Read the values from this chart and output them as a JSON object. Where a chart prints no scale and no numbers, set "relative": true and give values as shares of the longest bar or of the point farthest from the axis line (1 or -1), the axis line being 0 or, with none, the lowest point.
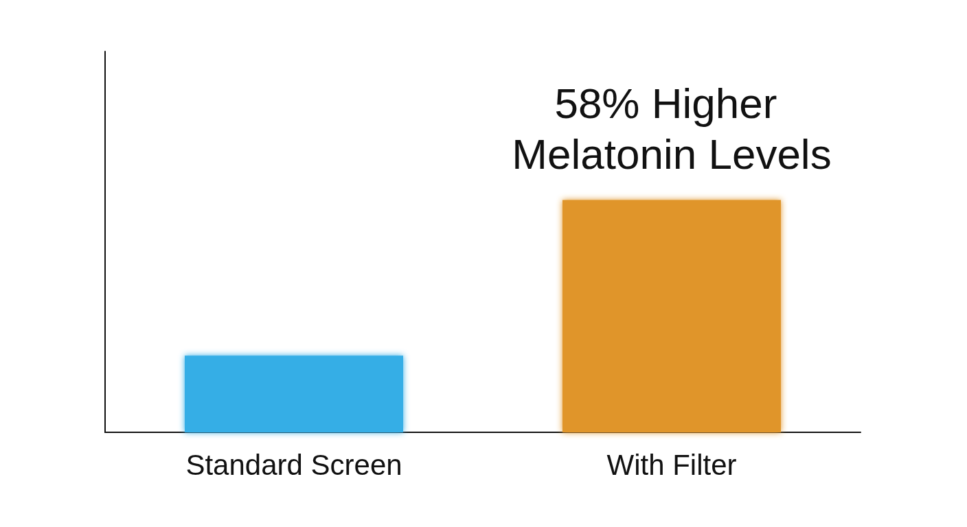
{
  "chart_data": {
    "type": "bar",
    "categories": [
      "Standard Screen",
      "With Filter"
    ],
    "values": [
      0.33,
      1
    ],
    "colors": [
      "#35aee6",
      "#e0952a"
    ],
    "relative": true,
    "annotations": [
      {
        "text": "58% Higher Melatonin Levels",
        "x": "With Filter",
        "y": 1
      }
    ]
  }
}
